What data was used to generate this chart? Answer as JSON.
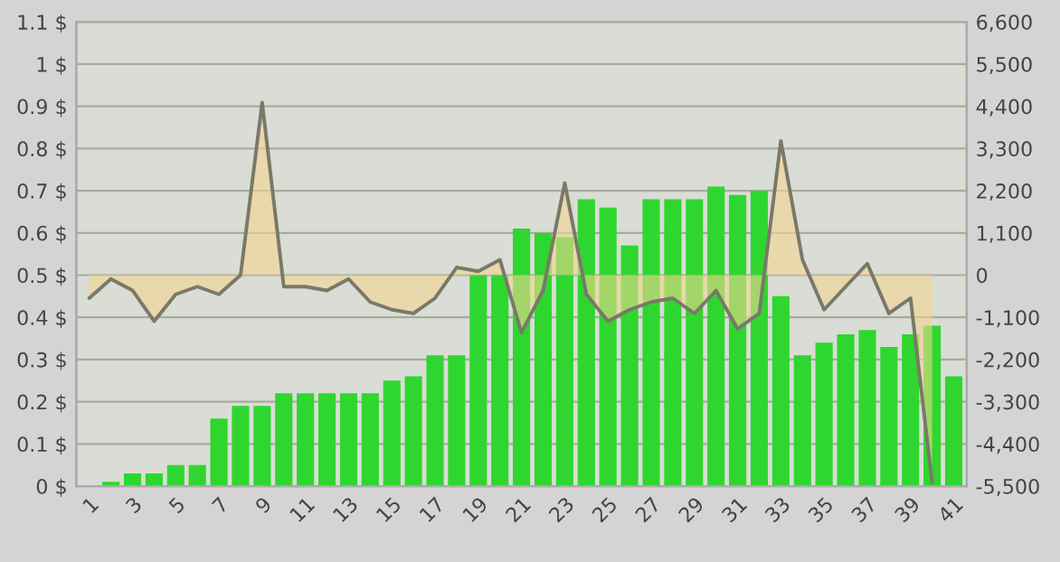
{
  "chart_data": {
    "type": "bar",
    "categories": [
      "1",
      null,
      "3",
      null,
      "5",
      null,
      "7",
      null,
      "9",
      null,
      "11",
      null,
      "13",
      null,
      "15",
      null,
      "17",
      null,
      "19",
      null,
      "21",
      null,
      "23",
      null,
      "25",
      null,
      "27",
      null,
      "29",
      null,
      "31",
      null,
      "33",
      null,
      "35",
      null,
      "37",
      null,
      "39",
      null,
      "41"
    ],
    "series": [
      {
        "color": "#2fd62f",
        "values": [
          0.0,
          0.01,
          0.03,
          0.03,
          0.05,
          0.05,
          0.16,
          0.19,
          0.19,
          0.22,
          0.22,
          0.22,
          0.22,
          0.22,
          0.25,
          0.26,
          0.31,
          0.31,
          0.5,
          0.5,
          0.61,
          0.6,
          0.59,
          0.68,
          0.66,
          0.57,
          0.68,
          0.68,
          0.68,
          0.71,
          0.69,
          0.7,
          0.45,
          0.31,
          0.34,
          0.36,
          0.37,
          0.33,
          0.36,
          0.38,
          0.26
        ]
      },
      {
        "type": "area",
        "axis": "y2",
        "color": "#7a7868",
        "values": [
          -600,
          -100,
          -400,
          -1200,
          -500,
          -300,
          -500,
          0,
          4500,
          -300,
          -300,
          -400,
          -100,
          -700,
          -900,
          -1000,
          -600,
          200,
          100,
          400,
          -1500,
          -400,
          2400,
          -500,
          -1200,
          -900,
          -700,
          -600,
          -1000,
          -400,
          -1400,
          -1000,
          3500,
          400,
          -900,
          -300,
          300,
          -1000,
          -600,
          -5400,
          null
        ]
      }
    ],
    "ylim": [
      0,
      1.1
    ],
    "yticks": [
      {
        "value": 0,
        "label": "0 $"
      },
      {
        "value": 0.1,
        "label": "0.1 $"
      },
      {
        "value": 0.2,
        "label": "0.2 $"
      },
      {
        "value": 0.3,
        "label": "0.3 $"
      },
      {
        "value": 0.4,
        "label": "0.4 $"
      },
      {
        "value": 0.5,
        "label": "0.5 $"
      },
      {
        "value": 0.6,
        "label": "0.6 $"
      },
      {
        "value": 0.7,
        "label": "0.7 $"
      },
      {
        "value": 0.8,
        "label": "0.8 $"
      },
      {
        "value": 0.9,
        "label": "0.9 $"
      },
      {
        "value": 1,
        "label": "1 $"
      },
      {
        "value": 1.1,
        "label": "1.1 $"
      }
    ],
    "y2lim": [
      -5500,
      6600
    ],
    "y2ticks": [
      {
        "value": -5500,
        "label": "-5,500"
      },
      {
        "value": -4400,
        "label": "-4,400"
      },
      {
        "value": -3300,
        "label": "-3,300"
      },
      {
        "value": -2200,
        "label": "-2,200"
      },
      {
        "value": -1100,
        "label": "-1,100"
      },
      0,
      {
        "value": 1100,
        "label": "1,100"
      },
      {
        "value": 2200,
        "label": "2,200"
      },
      {
        "value": 3300,
        "label": "3,300"
      },
      {
        "value": 4400,
        "label": "4,400"
      },
      {
        "value": 5500,
        "label": "5,500"
      },
      {
        "value": 6600,
        "label": "6,600"
      }
    ],
    "grid": "y"
  }
}
